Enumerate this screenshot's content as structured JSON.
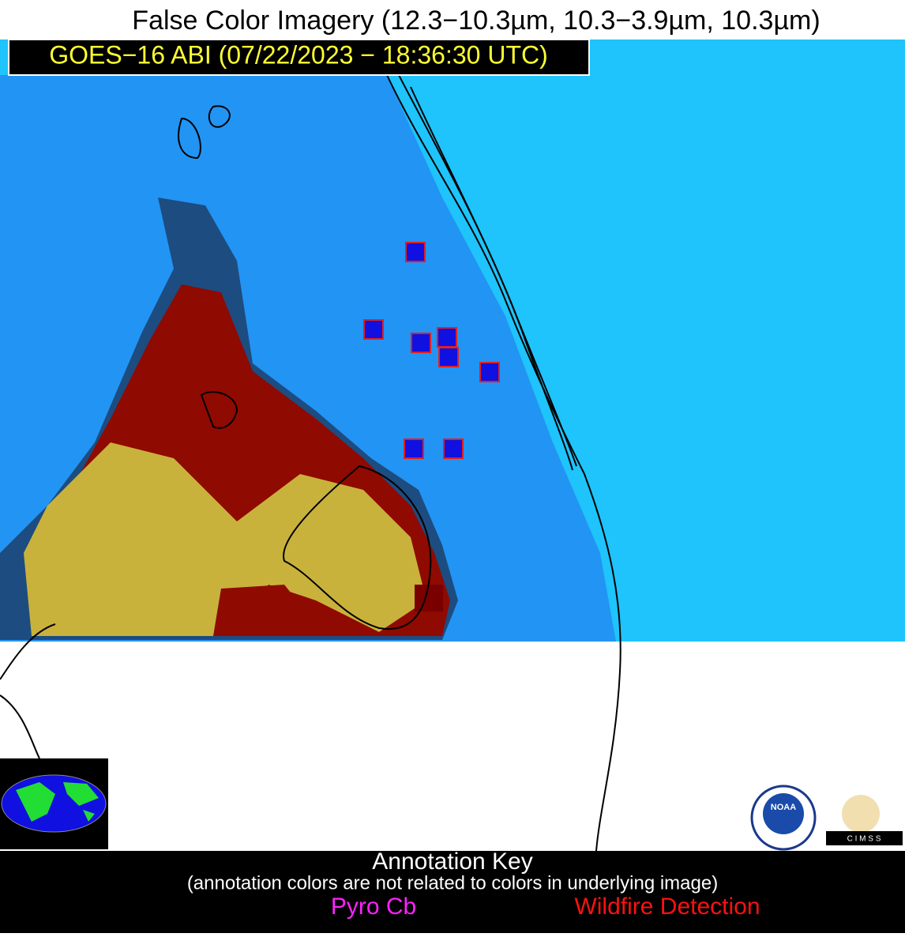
{
  "title": "False Color Imagery (12.3−10.3µm, 10.3−3.9µm, 10.3µm)",
  "subtitle": "GOES−16 ABI (07/22/2023 − 18:36:30 UTC)",
  "annotation_key": {
    "title": "Annotation Key",
    "note": "(annotation colors are not related to colors in underlying image)",
    "items": [
      "Pyro Cb",
      "Wildfire Detection"
    ]
  },
  "logos": [
    "NOAA",
    "C I M S S"
  ]
}
